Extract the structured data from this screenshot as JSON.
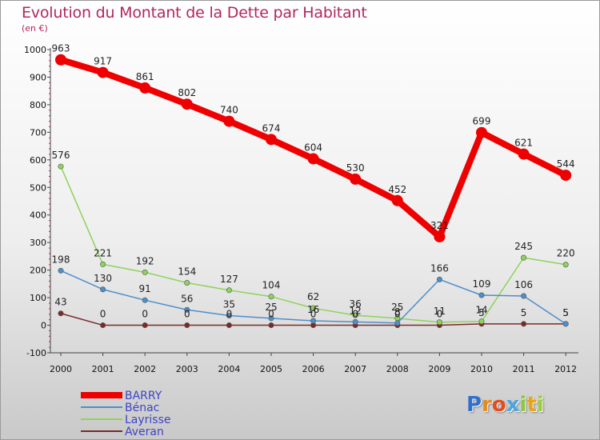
{
  "title": "Evolution du Montant de la Dette par Habitant",
  "unit_label": "(en €)",
  "logo": {
    "text": "Proxiti",
    "letter_colors": [
      "#2f6fcf",
      "#e68a1f",
      "#e24c1e",
      "#4aa6e0",
      "#8dc63f",
      "#e8a317",
      "#9bcf3a"
    ]
  },
  "chart_data": {
    "type": "line",
    "title": "Evolution du Montant de la Dette par Habitant",
    "subtitle": "(en €)",
    "xlabel": "",
    "ylabel": "",
    "x": [
      "2000",
      "2001",
      "2002",
      "2003",
      "2004",
      "2005",
      "2006",
      "2007",
      "2008",
      "2009",
      "2010",
      "2011",
      "2012"
    ],
    "ylim": [
      -100,
      1000
    ],
    "yticks": [
      "-100",
      "0",
      "100",
      "200",
      "300",
      "400",
      "500",
      "600",
      "700",
      "800",
      "900",
      "1000"
    ],
    "grid": false,
    "legend_placement": "bottom-left",
    "series": [
      {
        "name": "BARRY",
        "color": "#ee0000",
        "values": [
          963,
          917,
          861,
          802,
          740,
          674,
          604,
          530,
          452,
          321,
          699,
          621,
          544
        ],
        "labels": [
          "963",
          "917",
          "861",
          "802",
          "740",
          "674",
          "604",
          "530",
          "452",
          "321",
          "699",
          "621",
          "544"
        ]
      },
      {
        "name": "Bénac",
        "color": "#4e8ec9",
        "values": [
          198,
          130,
          91,
          56,
          35,
          25,
          16,
          12,
          8,
          166,
          109,
          106,
          5
        ],
        "labels": [
          "198",
          "130",
          "91",
          "56",
          "35",
          "25",
          "16",
          "12",
          "8",
          "166",
          "109",
          "106",
          "5"
        ]
      },
      {
        "name": "Layrisse",
        "color": "#8fd35a",
        "values": [
          576,
          221,
          192,
          154,
          127,
          104,
          62,
          36,
          25,
          11,
          14,
          245,
          220
        ],
        "labels": [
          "576",
          "221",
          "192",
          "154",
          "127",
          "104",
          "62",
          "36",
          "25",
          "11",
          "14",
          "245",
          "220"
        ]
      },
      {
        "name": "Averan",
        "color": "#7b2a2a",
        "values": [
          43,
          0,
          0,
          0,
          0,
          0,
          0,
          0,
          0,
          0,
          5,
          5,
          5
        ],
        "labels": [
          "43",
          "0",
          "0",
          "0",
          "0",
          "0",
          "0",
          "0",
          "0",
          "0",
          "5",
          "5",
          "5"
        ]
      }
    ]
  }
}
